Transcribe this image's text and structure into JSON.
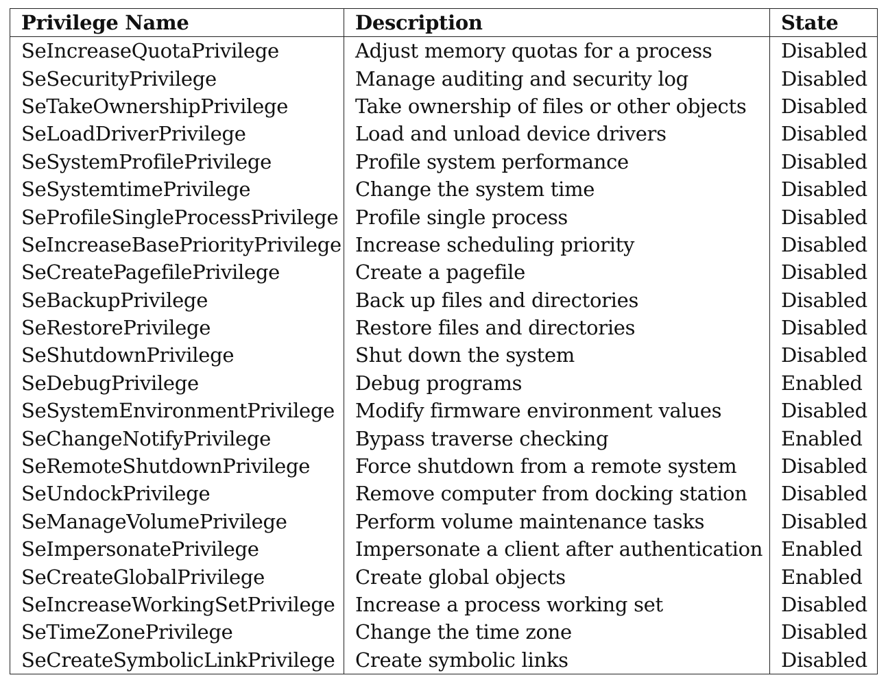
{
  "table": {
    "headers": [
      "Privilege Name",
      "Description",
      "State"
    ],
    "rows": [
      [
        "SeIncreaseQuotaPrivilege",
        "Adjust memory quotas for a process",
        "Disabled"
      ],
      [
        "SeSecurityPrivilege",
        "Manage auditing and security log",
        "Disabled"
      ],
      [
        "SeTakeOwnershipPrivilege",
        "Take ownership of files or other objects",
        "Disabled"
      ],
      [
        "SeLoadDriverPrivilege",
        "Load and unload device drivers",
        "Disabled"
      ],
      [
        "SeSystemProfilePrivilege",
        "Profile system performance",
        "Disabled"
      ],
      [
        "SeSystemtimePrivilege",
        "Change the system time",
        "Disabled"
      ],
      [
        "SeProfileSingleProcessPrivilege",
        "Profile single process",
        "Disabled"
      ],
      [
        "SeIncreaseBasePriorityPrivilege",
        "Increase scheduling priority",
        "Disabled"
      ],
      [
        "SeCreatePagefilePrivilege",
        "Create a pagefile",
        "Disabled"
      ],
      [
        "SeBackupPrivilege",
        "Back up files and directories",
        "Disabled"
      ],
      [
        "SeRestorePrivilege",
        "Restore files and directories",
        "Disabled"
      ],
      [
        "SeShutdownPrivilege",
        "Shut down the system",
        "Disabled"
      ],
      [
        "SeDebugPrivilege",
        "Debug programs",
        "Enabled"
      ],
      [
        "SeSystemEnvironmentPrivilege",
        "Modify firmware environment values",
        "Disabled"
      ],
      [
        "SeChangeNotifyPrivilege",
        "Bypass traverse checking",
        "Enabled"
      ],
      [
        "SeRemoteShutdownPrivilege",
        "Force shutdown from a remote system",
        "Disabled"
      ],
      [
        "SeUndockPrivilege",
        "Remove computer from docking station",
        "Disabled"
      ],
      [
        "SeManageVolumePrivilege",
        "Perform volume maintenance tasks",
        "Disabled"
      ],
      [
        "SeImpersonatePrivilege",
        "Impersonate a client after authentication",
        "Enabled"
      ],
      [
        "SeCreateGlobalPrivilege",
        "Create global objects",
        "Enabled"
      ],
      [
        "SeIncreaseWorkingSetPrivilege",
        "Increase a process working set",
        "Disabled"
      ],
      [
        "SeTimeZonePrivilege",
        "Change the time zone",
        "Disabled"
      ],
      [
        "SeCreateSymbolicLinkPrivilege",
        "Create symbolic links",
        "Disabled"
      ]
    ]
  }
}
